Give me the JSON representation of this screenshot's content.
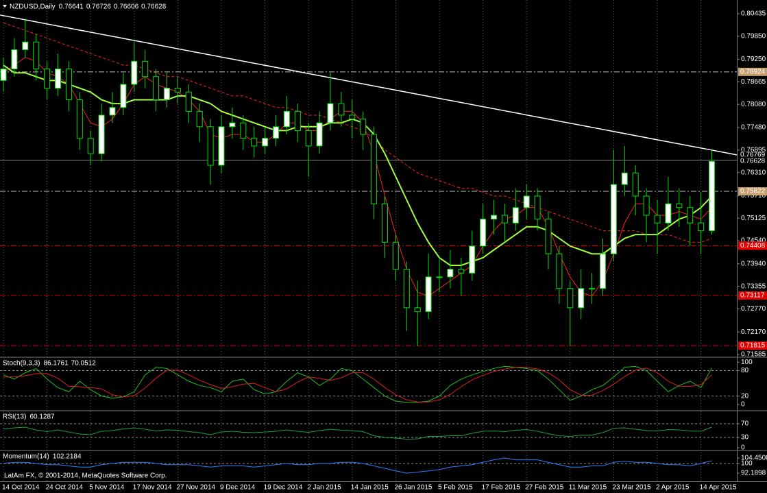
{
  "chart_data": [
    {
      "type": "candlestick",
      "title": "NZDUSD,Daily",
      "ohlc": [
        0.76641,
        0.76726,
        0.76606,
        0.76628
      ],
      "categories": [
        "14 Oct 2014",
        null,
        null,
        null,
        "24 Oct 2014",
        null,
        null,
        null,
        "5 Nov 2014",
        null,
        null,
        null,
        "17 Nov 2014",
        null,
        null,
        null,
        "27 Nov 2014",
        null,
        null,
        null,
        "9 Dec 2014",
        null,
        null,
        null,
        "19 Dec 2014",
        null,
        null,
        null,
        "2 Jan 2015",
        null,
        null,
        null,
        "14 Jan 2015",
        null,
        null,
        null,
        "26 Jan 2015",
        null,
        null,
        null,
        "5 Feb 2015",
        null,
        null,
        null,
        "17 Feb 2015",
        null,
        null,
        null,
        "27 Feb 2015",
        null,
        null,
        null,
        "11 Mar 2015",
        null,
        null,
        null,
        "23 Mar 2015",
        null,
        null,
        null,
        "2 Apr 2015",
        null,
        null,
        null,
        "14 Apr 2015",
        null
      ],
      "candles": [
        [
          0.787,
          0.793,
          0.784,
          0.79
        ],
        [
          0.79,
          0.798,
          0.788,
          0.795
        ],
        [
          0.795,
          0.803,
          0.793,
          0.797
        ],
        [
          0.797,
          0.799,
          0.787,
          0.79
        ],
        [
          0.79,
          0.792,
          0.782,
          0.785
        ],
        [
          0.785,
          0.794,
          0.783,
          0.79
        ],
        [
          0.79,
          0.792,
          0.779,
          0.782
        ],
        [
          0.782,
          0.784,
          0.769,
          0.772
        ],
        [
          0.772,
          0.774,
          0.765,
          0.768
        ],
        [
          0.768,
          0.781,
          0.766,
          0.778
        ],
        [
          0.778,
          0.784,
          0.776,
          0.78
        ],
        [
          0.78,
          0.789,
          0.778,
          0.786
        ],
        [
          0.786,
          0.797,
          0.784,
          0.792
        ],
        [
          0.792,
          0.795,
          0.785,
          0.788
        ],
        [
          0.788,
          0.79,
          0.779,
          0.782
        ],
        [
          0.782,
          0.789,
          0.78,
          0.785
        ],
        [
          0.785,
          0.788,
          0.781,
          0.784
        ],
        [
          0.784,
          0.786,
          0.776,
          0.779
        ],
        [
          0.779,
          0.781,
          0.771,
          0.775
        ],
        [
          0.775,
          0.777,
          0.76,
          0.765
        ],
        [
          0.765,
          0.778,
          0.763,
          0.775
        ],
        [
          0.775,
          0.78,
          0.772,
          0.776
        ],
        [
          0.776,
          0.778,
          0.769,
          0.772
        ],
        [
          0.772,
          0.775,
          0.767,
          0.77
        ],
        [
          0.77,
          0.775,
          0.768,
          0.772
        ],
        [
          0.772,
          0.778,
          0.77,
          0.775
        ],
        [
          0.775,
          0.783,
          0.773,
          0.779
        ],
        [
          0.779,
          0.781,
          0.771,
          0.774
        ],
        [
          0.774,
          0.776,
          0.762,
          0.77
        ],
        [
          0.77,
          0.779,
          0.768,
          0.776
        ],
        [
          0.776,
          0.789,
          0.774,
          0.781
        ],
        [
          0.781,
          0.784,
          0.775,
          0.778
        ],
        [
          0.778,
          0.782,
          0.772,
          0.777
        ],
        [
          0.777,
          0.779,
          0.769,
          0.773
        ],
        [
          0.773,
          0.775,
          0.751,
          0.755
        ],
        [
          0.755,
          0.757,
          0.741,
          0.745
        ],
        [
          0.745,
          0.747,
          0.735,
          0.738
        ],
        [
          0.738,
          0.74,
          0.722,
          0.728
        ],
        [
          0.728,
          0.735,
          0.718,
          0.727
        ],
        [
          0.727,
          0.742,
          0.725,
          0.736
        ],
        [
          0.736,
          0.741,
          0.732,
          0.736
        ],
        [
          0.736,
          0.743,
          0.733,
          0.738
        ],
        [
          0.738,
          0.741,
          0.731,
          0.737
        ],
        [
          0.737,
          0.748,
          0.735,
          0.744
        ],
        [
          0.744,
          0.755,
          0.742,
          0.751
        ],
        [
          0.751,
          0.756,
          0.747,
          0.752
        ],
        [
          0.752,
          0.755,
          0.745,
          0.75
        ],
        [
          0.75,
          0.759,
          0.748,
          0.754
        ],
        [
          0.754,
          0.76,
          0.751,
          0.757
        ],
        [
          0.757,
          0.759,
          0.748,
          0.751
        ],
        [
          0.751,
          0.753,
          0.738,
          0.742
        ],
        [
          0.742,
          0.744,
          0.729,
          0.733
        ],
        [
          0.733,
          0.735,
          0.718,
          0.728
        ],
        [
          0.728,
          0.738,
          0.725,
          0.733
        ],
        [
          0.733,
          0.737,
          0.729,
          0.733
        ],
        [
          0.733,
          0.746,
          0.731,
          0.742
        ],
        [
          0.742,
          0.769,
          0.74,
          0.76
        ],
        [
          0.76,
          0.77,
          0.757,
          0.763
        ],
        [
          0.763,
          0.765,
          0.752,
          0.757
        ],
        [
          0.757,
          0.759,
          0.745,
          0.752
        ],
        [
          0.752,
          0.756,
          0.742,
          0.75
        ],
        [
          0.75,
          0.762,
          0.748,
          0.755
        ],
        [
          0.755,
          0.759,
          0.749,
          0.754
        ],
        [
          0.754,
          0.757,
          0.744,
          0.75
        ],
        [
          0.75,
          0.758,
          0.742,
          0.748
        ],
        [
          0.748,
          0.769,
          0.747,
          0.766
        ]
      ],
      "colors": {
        "up": "#ffffff",
        "down": "#000000",
        "wick": "#00e000"
      },
      "overlays": [
        {
          "color": "#ff2020",
          "width": 1,
          "dash": "4 3",
          "values": [
            0.802,
            0.801,
            0.8,
            0.799,
            0.798,
            0.797,
            0.796,
            0.795,
            0.794,
            0.793,
            0.792,
            0.791,
            0.791,
            0.79,
            0.789,
            0.788,
            0.788,
            0.787,
            0.786,
            0.785,
            0.784,
            0.783,
            0.783,
            0.782,
            0.781,
            0.78,
            0.78,
            0.779,
            0.778,
            0.778,
            0.777,
            0.776,
            0.775,
            0.774,
            0.772,
            0.769,
            0.767,
            0.765,
            0.763,
            0.762,
            0.761,
            0.76,
            0.759,
            0.759,
            0.758,
            0.757,
            0.757,
            0.756,
            0.755,
            0.754,
            0.753,
            0.752,
            0.751,
            0.75,
            0.749,
            0.748,
            0.748,
            0.748,
            0.748,
            0.747,
            0.747,
            0.747,
            0.746,
            0.745,
            0.745,
            0.746
          ]
        },
        {
          "color": "#ff2020",
          "width": 1,
          "values": [
            0.789,
            0.791,
            0.793,
            0.792,
            0.789,
            0.788,
            0.786,
            0.781,
            0.776,
            0.775,
            0.777,
            0.781,
            0.786,
            0.788,
            0.786,
            0.785,
            0.784,
            0.782,
            0.779,
            0.773,
            0.772,
            0.773,
            0.773,
            0.771,
            0.771,
            0.773,
            0.776,
            0.776,
            0.774,
            0.774,
            0.777,
            0.779,
            0.779,
            0.776,
            0.768,
            0.757,
            0.747,
            0.738,
            0.732,
            0.731,
            0.733,
            0.735,
            0.737,
            0.739,
            0.744,
            0.748,
            0.751,
            0.752,
            0.754,
            0.754,
            0.749,
            0.742,
            0.736,
            0.732,
            0.731,
            0.735,
            0.742,
            0.75,
            0.755,
            0.755,
            0.752,
            0.752,
            0.753,
            0.752,
            0.751,
            0.754
          ]
        },
        {
          "color": "#a0ff40",
          "width": 2,
          "values": [
            0.791,
            0.789,
            0.789,
            0.788,
            0.787,
            0.787,
            0.786,
            0.785,
            0.784,
            0.782,
            0.781,
            0.781,
            0.782,
            0.782,
            0.782,
            0.782,
            0.783,
            0.783,
            0.782,
            0.781,
            0.779,
            0.778,
            0.777,
            0.776,
            0.775,
            0.774,
            0.774,
            0.775,
            0.775,
            0.775,
            0.776,
            0.776,
            0.777,
            0.776,
            0.773,
            0.768,
            0.762,
            0.756,
            0.75,
            0.745,
            0.741,
            0.739,
            0.739,
            0.74,
            0.741,
            0.743,
            0.745,
            0.747,
            0.749,
            0.749,
            0.748,
            0.746,
            0.744,
            0.743,
            0.742,
            0.742,
            0.744,
            0.746,
            0.747,
            0.747,
            0.747,
            0.749,
            0.751,
            0.752,
            0.754,
            0.757
          ]
        }
      ],
      "trendline": {
        "color": "#ffffff",
        "x": [
          -0.3,
          67.3
        ],
        "values": [
          0.804,
          0.76769
        ]
      },
      "current_color": "#808080",
      "levels": [
        {
          "value": 0.78924,
          "color": "#c8a06e",
          "line": "#c0c0c0"
        },
        {
          "value": 0.75822,
          "color": "#c8a06e",
          "line": "#c0c0c0"
        },
        {
          "value": 0.74408,
          "color": "#e00000",
          "line": "#e00000"
        },
        {
          "value": 0.73117,
          "color": "#e00000",
          "line": "#e00000"
        },
        {
          "value": 0.71815,
          "color": "#e00000",
          "line": "#e00000"
        }
      ],
      "ylim": [
        0.71532,
        0.80755
      ],
      "yticks": [
        0.80435,
        {
          "value": 0.7985,
          "label": "0.79850"
        },
        {
          "value": 0.7925,
          "label": "0.79250"
        },
        0.78665,
        {
          "value": 0.7808,
          "label": "0.78080"
        },
        {
          "value": 0.7748,
          "label": "0.77480"
        },
        0.76895,
        {
          "value": 0.7631,
          "label": "0.76310"
        },
        {
          "value": 0.7571,
          "label": "0.75710"
        },
        0.75125,
        {
          "value": 0.7454,
          "label": "0.74540"
        },
        {
          "value": 0.7394,
          "label": "0.73940"
        },
        0.73355,
        {
          "value": 0.7277,
          "label": "0.72770"
        },
        {
          "value": 0.7217,
          "label": "0.72170"
        },
        0.71585
      ]
    },
    {
      "type": "line",
      "title": "Stoch(9,3,3)",
      "ylim": [
        -13,
        110
      ],
      "yticks": [
        0,
        20,
        80,
        100
      ],
      "levels": [
        20,
        80
      ],
      "series": [
        {
          "color": "#20c020",
          "values": [
            70,
            60,
            75,
            85,
            60,
            40,
            30,
            55,
            35,
            20,
            15,
            18,
            30,
            70,
            88,
            85,
            70,
            55,
            45,
            40,
            30,
            55,
            60,
            35,
            25,
            30,
            55,
            75,
            65,
            45,
            60,
            85,
            80,
            60,
            40,
            20,
            8,
            5,
            5,
            8,
            20,
            45,
            60,
            70,
            78,
            85,
            90,
            88,
            85,
            80,
            60,
            35,
            10,
            20,
            35,
            45,
            65,
            88,
            90,
            80,
            55,
            30,
            45,
            55,
            40,
            86.1761
          ]
        },
        {
          "color": "#e02020",
          "values": [
            65,
            65,
            68,
            73,
            73,
            62,
            43,
            42,
            40,
            37,
            23,
            18,
            21,
            39,
            62,
            81,
            81,
            70,
            57,
            47,
            38,
            42,
            48,
            50,
            40,
            30,
            37,
            53,
            65,
            62,
            57,
            63,
            75,
            75,
            60,
            40,
            23,
            11,
            6,
            6,
            11,
            24,
            42,
            58,
            69,
            78,
            84,
            88,
            88,
            84,
            75,
            58,
            35,
            22,
            22,
            33,
            48,
            66,
            81,
            86,
            75,
            55,
            43,
            43,
            47,
            70.0512
          ]
        }
      ]
    },
    {
      "type": "line",
      "title": "RSI(13)",
      "ylim": [
        -6,
        106
      ],
      "yticks": [
        0,
        30,
        70
      ],
      "levels": [
        30,
        70
      ],
      "series": [
        {
          "color": "#20a040",
          "values": [
            55,
            58,
            60,
            52,
            47,
            52,
            46,
            40,
            38,
            48,
            50,
            55,
            58,
            54,
            49,
            52,
            51,
            47,
            44,
            38,
            46,
            48,
            45,
            44,
            46,
            48,
            52,
            48,
            45,
            50,
            54,
            51,
            50,
            47,
            35,
            30,
            28,
            25,
            26,
            33,
            33,
            35,
            35,
            42,
            48,
            49,
            47,
            51,
            53,
            48,
            41,
            35,
            33,
            37,
            37,
            44,
            57,
            58,
            54,
            50,
            49,
            53,
            52,
            49,
            48,
            60.1287
          ]
        }
      ]
    },
    {
      "type": "line",
      "title": "Momentum(14)",
      "ylim": [
        86.6,
        110
      ],
      "yticks": [
        92.1898,
        100,
        104.4508
      ],
      "levels": [
        100
      ],
      "footer": "LatAm FX, © 2001-2014, MetaQuotes Software Corp.",
      "series": [
        {
          "color": "#3080ff",
          "values": [
            100,
            101,
            101,
            100,
            99,
            99,
            98,
            97,
            97,
            99,
            100,
            101,
            101,
            101,
            100,
            99,
            99,
            99,
            98,
            97,
            98,
            98,
            98,
            97,
            98,
            99,
            100,
            99,
            99,
            100,
            100,
            101,
            101,
            100,
            98,
            96,
            94,
            92.1898,
            93,
            94,
            95,
            97,
            98,
            99,
            101,
            103,
            104.4508,
            103,
            103,
            103,
            101,
            99,
            97,
            97,
            98,
            98,
            101,
            102,
            101,
            101,
            100,
            99,
            99,
            98,
            100,
            102.2184
          ]
        }
      ]
    }
  ]
}
